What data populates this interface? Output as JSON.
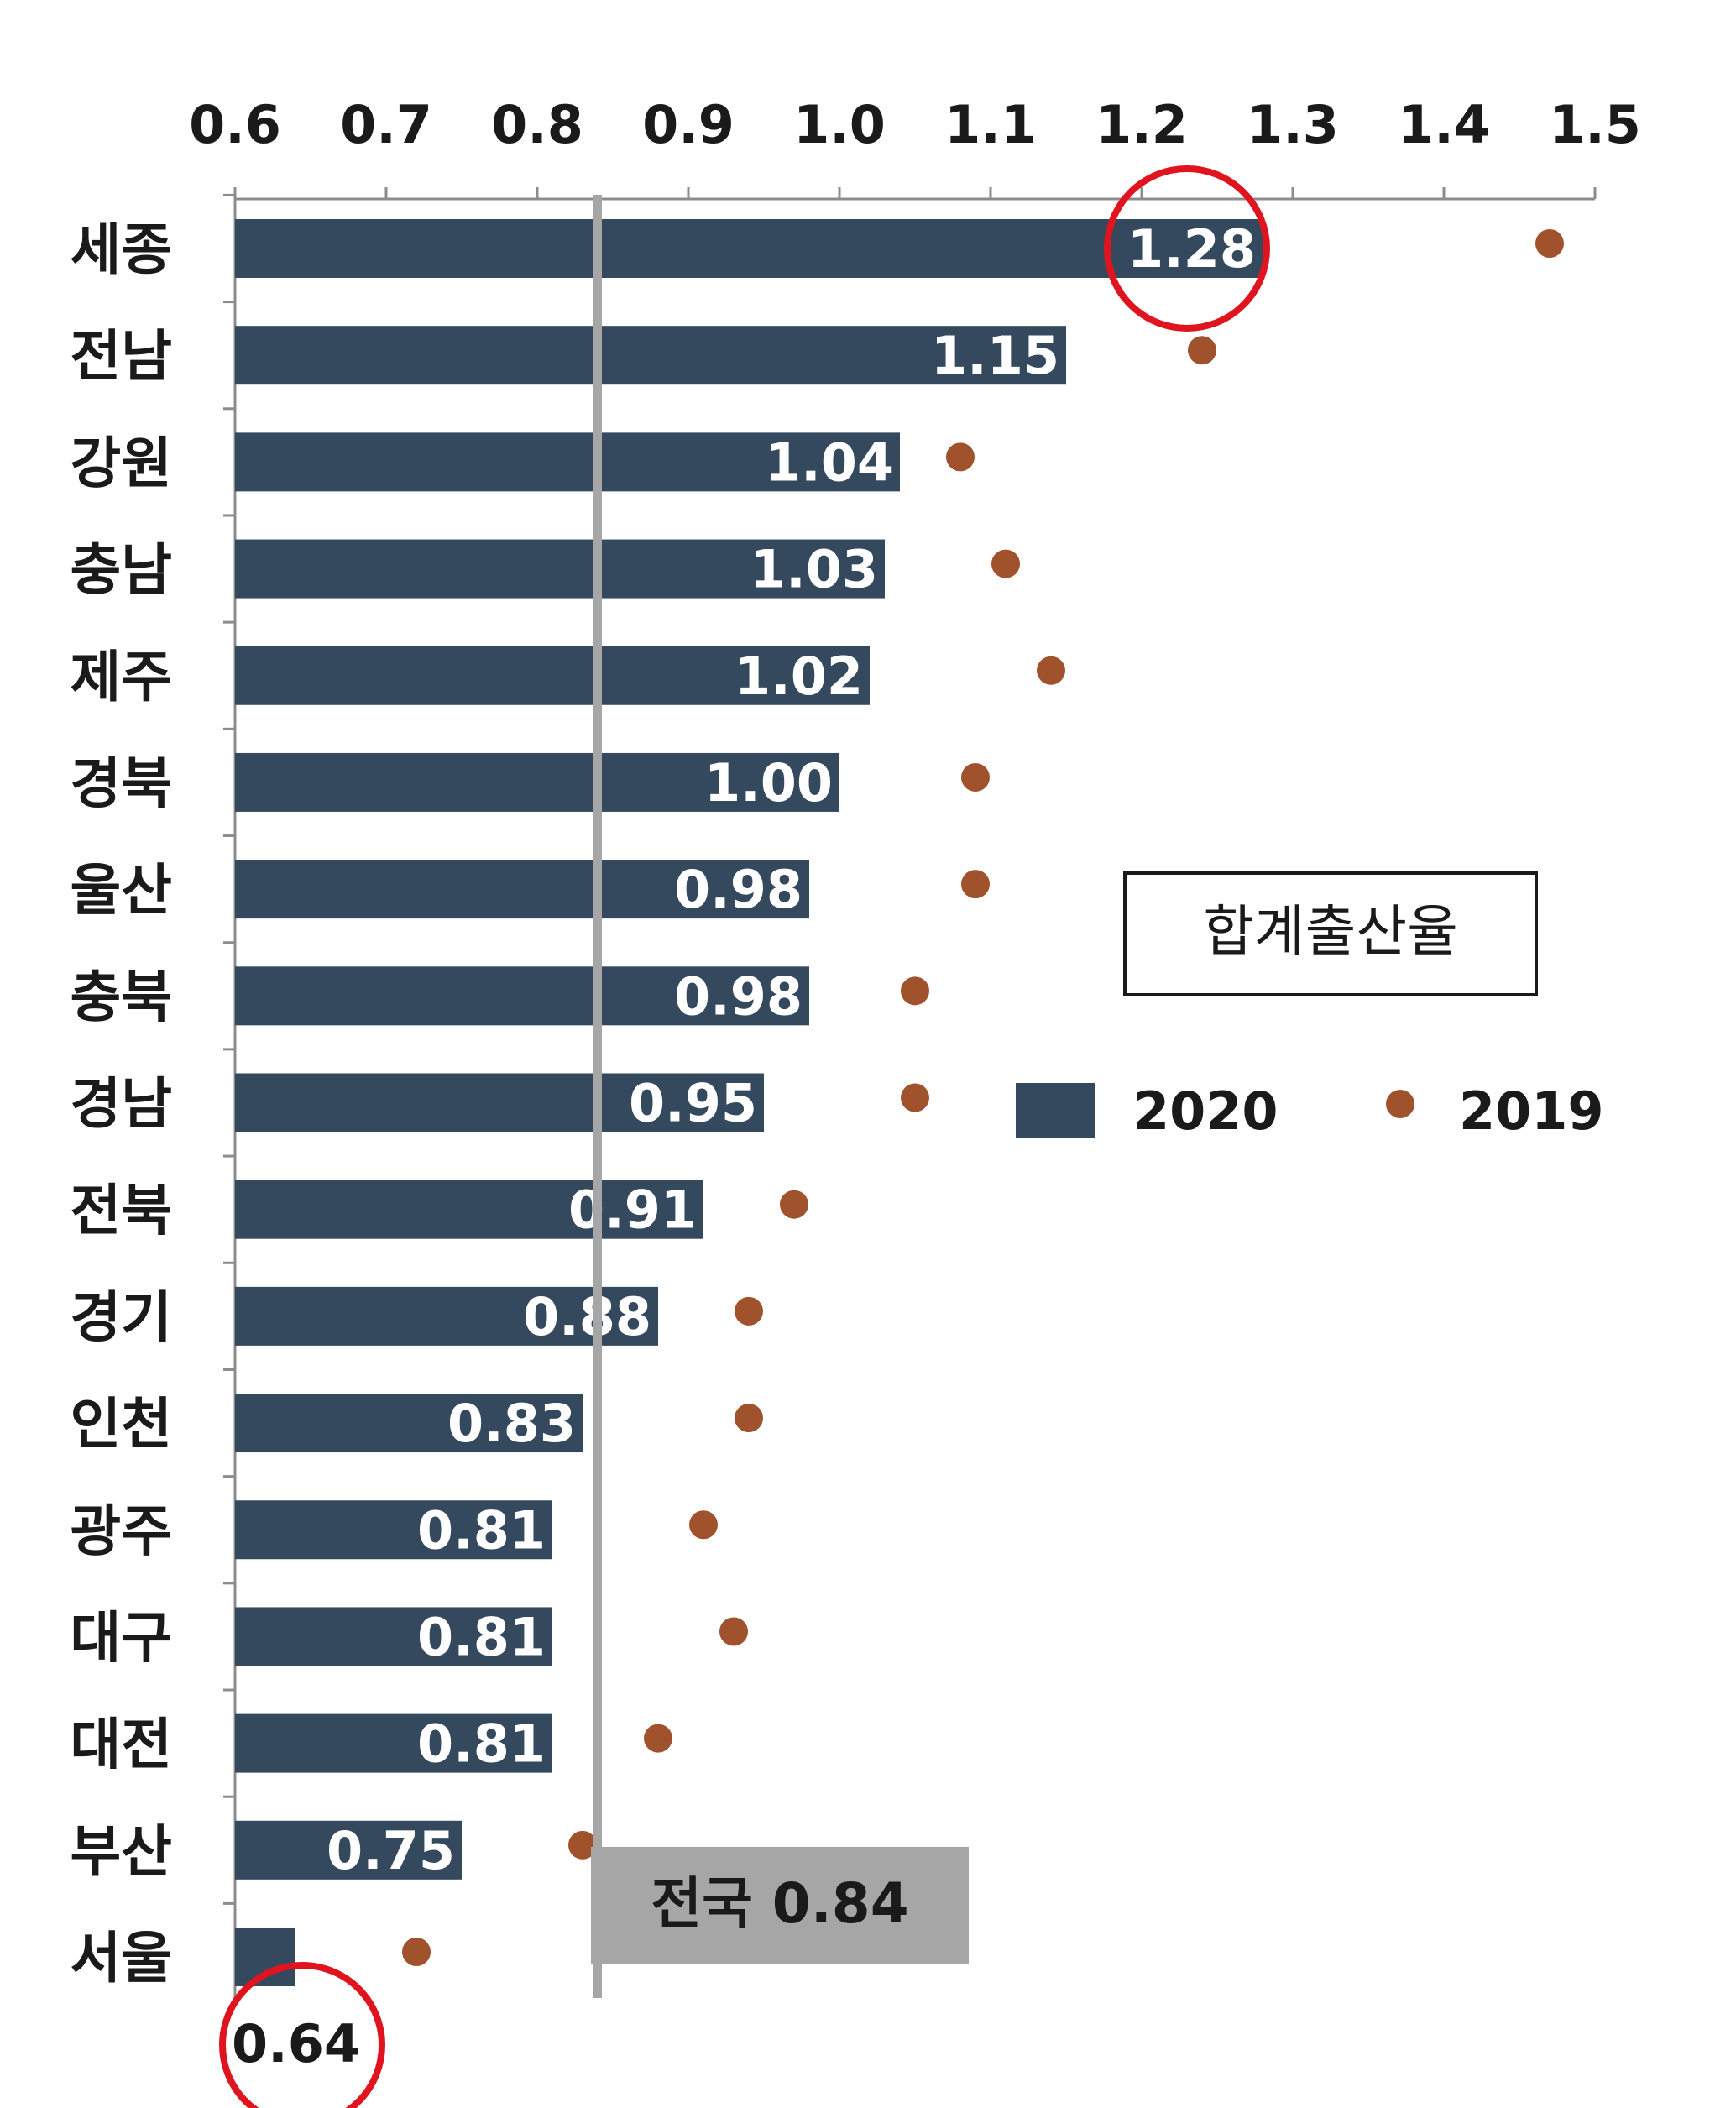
{
  "chart_data": {
    "type": "bar",
    "title": "",
    "legend_title": "합계출산율",
    "x_ticks": [
      "0.6",
      "0.7",
      "0.8",
      "0.9",
      "1.0",
      "1.1",
      "1.2",
      "1.3",
      "1.4",
      "1.5"
    ],
    "xlim": [
      0.6,
      1.5
    ],
    "categories": [
      "세종",
      "전남",
      "강원",
      "충남",
      "제주",
      "경북",
      "울산",
      "충북",
      "경남",
      "전북",
      "경기",
      "인천",
      "광주",
      "대구",
      "대전",
      "부산",
      "서울"
    ],
    "series": [
      {
        "name": "2020",
        "color": "#34495e",
        "values": [
          1.28,
          1.15,
          1.04,
          1.03,
          1.02,
          1.0,
          0.98,
          0.98,
          0.95,
          0.91,
          0.88,
          0.83,
          0.81,
          0.81,
          0.81,
          0.75,
          0.64
        ],
        "labels": [
          "1.28",
          "1.15",
          "1.04",
          "1.03",
          "1.02",
          "1.00",
          "0.98",
          "0.98",
          "0.95",
          "0.91",
          "0.88",
          "0.83",
          "0.81",
          "0.81",
          "0.81",
          "0.75",
          "0.64"
        ]
      },
      {
        "name": "2019",
        "color": "#a0522d",
        "values": [
          1.47,
          1.24,
          1.08,
          1.11,
          1.14,
          1.09,
          1.09,
          1.05,
          1.05,
          0.97,
          0.94,
          0.94,
          0.91,
          0.93,
          0.88,
          0.83,
          0.72
        ]
      }
    ],
    "reference_line": {
      "value": 0.84,
      "label": "전국 0.84",
      "color": "#a6a6a6"
    },
    "highlighted": [
      "세종",
      "서울"
    ],
    "highlight_color": "#e0141e",
    "grid": false,
    "legend_position": "right-middle"
  }
}
